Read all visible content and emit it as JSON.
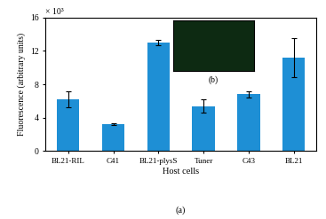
{
  "chart_data": {
    "type": "bar",
    "x_label": "Host cells",
    "y_label": "Fluorescence (arbitrary units)",
    "axis_multiplier": "× 10³",
    "inset_label": "(b)",
    "panel_label": "(a)",
    "categories": [
      "BL21-RIL",
      "C41",
      "BL21-plysS",
      "Tuner",
      "C43",
      "BL21"
    ],
    "values": [
      6.2,
      3.2,
      13.0,
      5.4,
      6.8,
      11.2
    ],
    "errors": [
      1.0,
      0.1,
      0.3,
      0.8,
      0.4,
      2.3
    ],
    "color": "#1e8fd5",
    "ylim": [
      0,
      16
    ],
    "yticks": [
      0,
      4,
      8,
      12,
      16
    ],
    "grid": false
  }
}
